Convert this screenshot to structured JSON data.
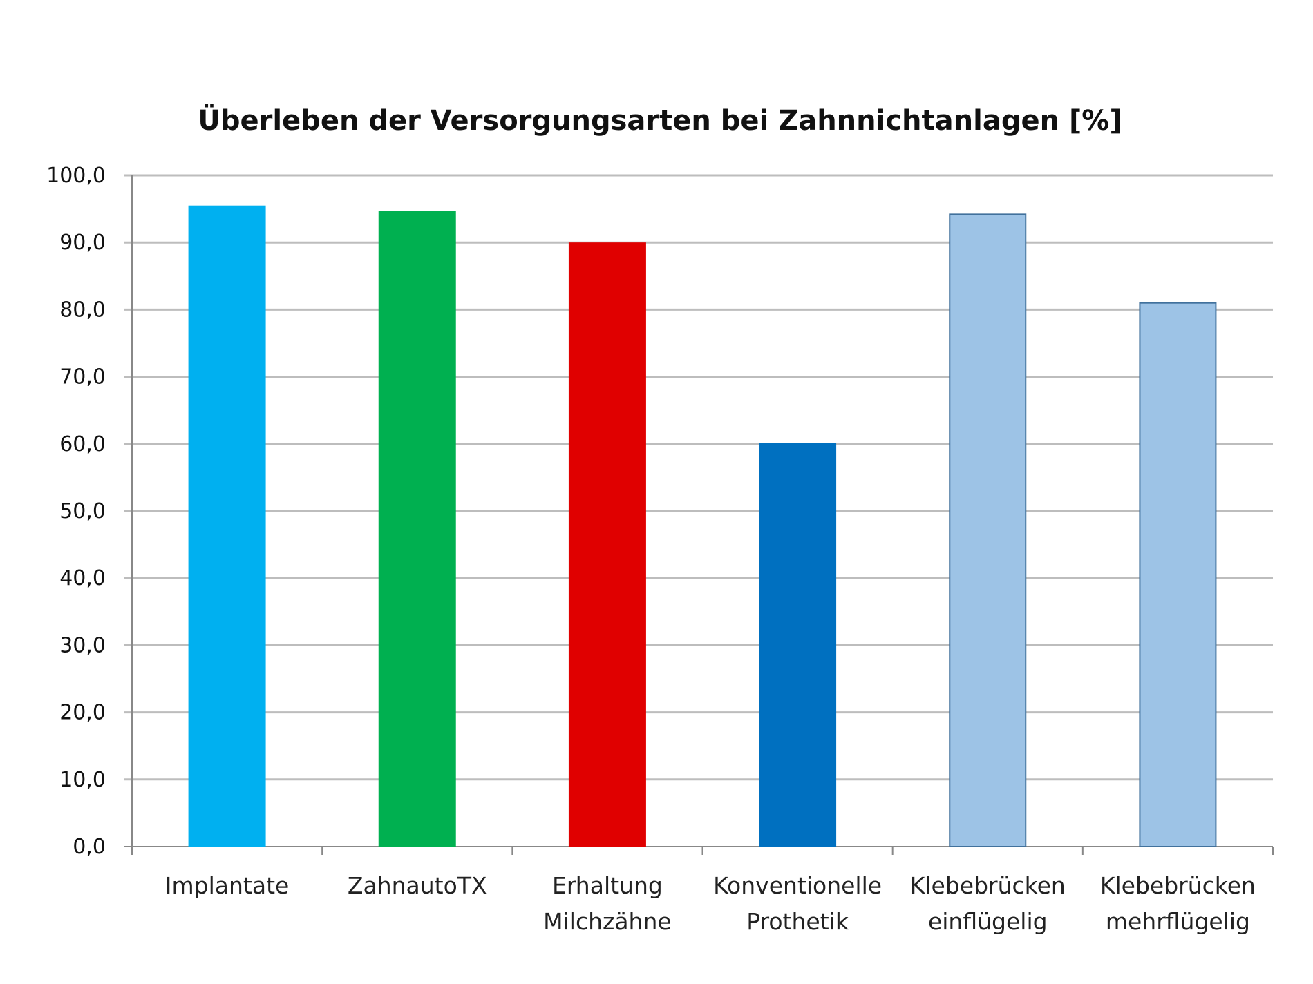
{
  "chart_data": {
    "type": "bar",
    "title": "Überleben der Versorgungsarten bei Zahnnichtanlagen [%]",
    "xlabel": "",
    "ylabel": "",
    "ylim": [
      0,
      100
    ],
    "grid": true,
    "y_ticks": [
      "0,0",
      "10,0",
      "20,0",
      "30,0",
      "40,0",
      "50,0",
      "60,0",
      "70,0",
      "80,0",
      "90,0",
      "100,0"
    ],
    "categories": [
      [
        "Implantate"
      ],
      [
        "ZahnautoTX"
      ],
      [
        "Erhaltung",
        "Milchzähne"
      ],
      [
        "Konventionelle",
        "Prothetik"
      ],
      [
        "Klebebrücken",
        "einflügelig"
      ],
      [
        "Klebebrücken",
        "mehrflügelig"
      ]
    ],
    "values": [
      95.4,
      94.6,
      89.9,
      60.0,
      94.2,
      81.0
    ],
    "colors": [
      "#00b0f0",
      "#00b050",
      "#e00000",
      "#0070c0",
      "#9dc3e6",
      "#9dc3e6"
    ],
    "border_colors": [
      "#00b0f0",
      "#00b050",
      "#e00000",
      "#0070c0",
      "#41719c",
      "#41719c"
    ]
  }
}
